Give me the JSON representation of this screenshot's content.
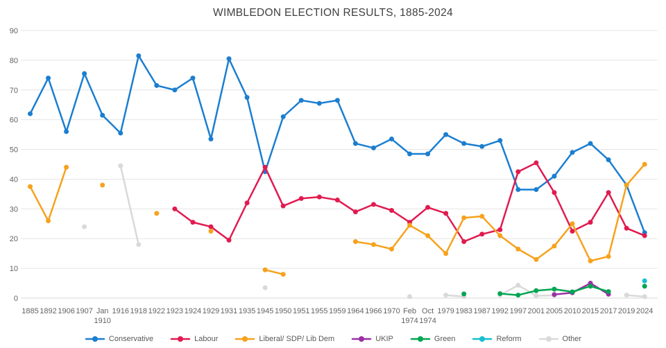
{
  "page": {
    "background": "#ffffff"
  },
  "chart_data": {
    "type": "line",
    "title": "WIMBLEDON ELECTION RESULTS, 1885-2024",
    "xlabel": "",
    "ylabel": "",
    "ylim": [
      0,
      90
    ],
    "ytick_step": 10,
    "grid": true,
    "legend_position": "bottom",
    "categories": [
      "1885",
      "1892",
      "1906",
      "1907",
      "Jan 1910",
      "1916",
      "1918",
      "1922",
      "1923",
      "1924",
      "1929",
      "1931",
      "1935",
      "1945",
      "1950",
      "1951",
      "1955",
      "1959",
      "1964",
      "1966",
      "1970",
      "Feb 1974",
      "Oct 1974",
      "1979",
      "1983",
      "1987",
      "1992",
      "1997",
      "2001",
      "2005",
      "2010",
      "2015",
      "2017",
      "2019",
      "2024"
    ],
    "series": [
      {
        "name": "Conservative",
        "color": "#1b7ed0",
        "values": [
          62,
          74,
          56,
          75.5,
          61.5,
          55.5,
          81.5,
          71.5,
          70,
          74,
          53.5,
          80.5,
          67.5,
          42.5,
          61,
          66.5,
          65.5,
          66.5,
          52,
          50.5,
          53.5,
          48.5,
          48.5,
          55,
          52,
          51,
          53,
          36.5,
          36.5,
          41,
          49,
          52,
          46.5,
          38,
          22
        ]
      },
      {
        "name": "Labour",
        "color": "#e11a4f",
        "values": [
          null,
          null,
          null,
          null,
          null,
          null,
          null,
          null,
          30,
          25.5,
          24,
          19.5,
          32,
          44,
          31,
          33.5,
          34,
          33,
          29,
          31.5,
          29.5,
          25.5,
          30.5,
          28.5,
          19,
          21.5,
          23,
          42.5,
          45.5,
          35.5,
          22.5,
          25.5,
          35.5,
          23.5,
          21
        ]
      },
      {
        "name": "Liberal/ SDP/ Lib Dem",
        "color": "#f6a21d",
        "values": [
          37.5,
          26,
          44,
          null,
          38,
          null,
          null,
          28.5,
          null,
          null,
          22.5,
          null,
          null,
          9.5,
          8,
          null,
          null,
          null,
          19,
          18,
          16.5,
          24.5,
          21,
          15,
          27,
          27.5,
          21,
          16.5,
          13,
          17.5,
          25,
          12.5,
          14,
          38,
          45
        ]
      },
      {
        "name": "UKIP",
        "color": "#9a30a4",
        "values": [
          null,
          null,
          null,
          null,
          null,
          null,
          null,
          null,
          null,
          null,
          null,
          null,
          null,
          null,
          null,
          null,
          null,
          null,
          null,
          null,
          null,
          null,
          null,
          null,
          null,
          null,
          null,
          null,
          null,
          1.2,
          1.8,
          5,
          1.3,
          null,
          null
        ]
      },
      {
        "name": "Green",
        "color": "#00a551",
        "values": [
          null,
          null,
          null,
          null,
          null,
          null,
          null,
          null,
          null,
          null,
          null,
          null,
          null,
          null,
          null,
          null,
          null,
          null,
          null,
          null,
          null,
          null,
          null,
          null,
          1.4,
          null,
          1.5,
          1,
          2.5,
          3,
          2.1,
          4,
          2.2,
          null,
          4
        ]
      },
      {
        "name": "Reform",
        "color": "#17becf",
        "values": [
          null,
          null,
          null,
          null,
          null,
          null,
          null,
          null,
          null,
          null,
          null,
          null,
          null,
          null,
          null,
          null,
          null,
          null,
          null,
          null,
          null,
          null,
          null,
          null,
          null,
          null,
          null,
          null,
          null,
          null,
          null,
          null,
          null,
          null,
          5.8
        ]
      },
      {
        "name": "Other",
        "color": "#d9d9d9",
        "values": [
          null,
          null,
          null,
          24,
          null,
          44.5,
          18,
          null,
          null,
          null,
          null,
          null,
          null,
          3.5,
          null,
          null,
          null,
          null,
          null,
          null,
          null,
          0.5,
          null,
          1,
          0.5,
          null,
          1,
          4.3,
          0.8,
          0.9,
          null,
          null,
          null,
          1,
          0.5
        ]
      }
    ],
    "colors": {
      "grid": "#e4e4e4",
      "baseline": "#d6d6d6",
      "axis_text": "#636363",
      "title_text": "#3f3f3f"
    }
  }
}
